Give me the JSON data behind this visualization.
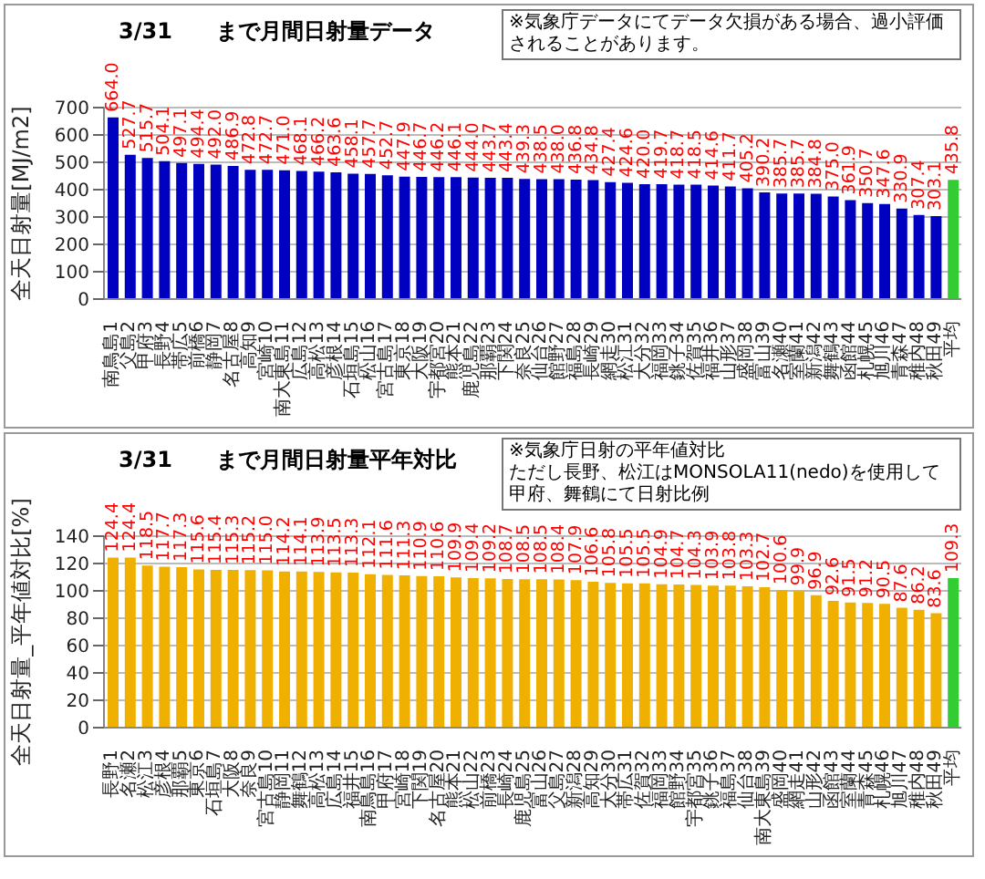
{
  "chart_data": [
    {
      "type": "bar",
      "title": "3/31　　まで月間日射量データ",
      "ylabel": "全天日射量[MJ/m2]",
      "categories": [
        "南鳥島1",
        "父島2",
        "甲府3",
        "長野4",
        "帯広5",
        "前橋6",
        "静岡7",
        "名古屋8",
        "高知9",
        "宮崎10",
        "南大東島11",
        "広島12",
        "高松13",
        "彦根14",
        "石垣島15",
        "松山16",
        "宮古島17",
        "東京18",
        "大阪19",
        "宇都宮20",
        "熊本21",
        "鹿児島22",
        "那覇23",
        "下関24",
        "奈良25",
        "仙台26",
        "館野27",
        "福島28",
        "長崎29",
        "網走30",
        "松江31",
        "大分32",
        "福岡33",
        "銚子34",
        "佐賀35",
        "福井36",
        "山形37",
        "盛岡38",
        "富山39",
        "名瀬40",
        "室蘭41",
        "新潟42",
        "舞鶴43",
        "函館44",
        "札幌45",
        "旭川46",
        "青森47",
        "稚内48",
        "秋田49",
        "平均"
      ],
      "values": [
        664.0,
        527.7,
        515.7,
        504.1,
        497.1,
        494.4,
        492.0,
        486.9,
        472.8,
        472.7,
        471.0,
        468.1,
        466.2,
        463.6,
        458.1,
        457.7,
        452.7,
        447.9,
        446.7,
        446.2,
        446.1,
        444.0,
        443.7,
        443.4,
        439.3,
        438.5,
        438.0,
        436.8,
        434.8,
        427.4,
        424.6,
        420.0,
        419.7,
        418.7,
        418.5,
        414.6,
        411.7,
        405.2,
        390.2,
        385.7,
        385.7,
        384.8,
        375.0,
        361.9,
        350.7,
        347.6,
        330.9,
        307.4,
        303.1,
        435.8
      ],
      "colors": [
        "#0000c0",
        "#0000c0",
        "#0000c0",
        "#0000c0",
        "#0000c0",
        "#0000c0",
        "#0000c0",
        "#0000c0",
        "#0000c0",
        "#0000c0",
        "#0000c0",
        "#0000c0",
        "#0000c0",
        "#0000c0",
        "#0000c0",
        "#0000c0",
        "#0000c0",
        "#0000c0",
        "#0000c0",
        "#0000c0",
        "#0000c0",
        "#0000c0",
        "#0000c0",
        "#0000c0",
        "#0000c0",
        "#0000c0",
        "#0000c0",
        "#0000c0",
        "#0000c0",
        "#0000c0",
        "#0000c0",
        "#0000c0",
        "#0000c0",
        "#0000c0",
        "#0000c0",
        "#0000c0",
        "#0000c0",
        "#0000c0",
        "#0000c0",
        "#0000c0",
        "#0000c0",
        "#0000c0",
        "#0000c0",
        "#0000c0",
        "#0000c0",
        "#0000c0",
        "#0000c0",
        "#0000c0",
        "#0000c0",
        "#33cc33"
      ],
      "value_labels": [
        "664.0",
        "527.7",
        "515.7",
        "504.1",
        "497.1",
        "494.4",
        "492.0",
        "486.9",
        "472.8",
        "472.7",
        "471.0",
        "468.1",
        "466.2",
        "463.6",
        "458.1",
        "457.7",
        "452.7",
        "447.9",
        "446.7",
        "446.2",
        "446.1",
        "444.0",
        "443.7",
        "443.4",
        "439.3",
        "438.5",
        "438.0",
        "436.8",
        "434.8",
        "427.4",
        "424.6",
        "420.0",
        "419.7",
        "418.7",
        "418.5",
        "414.6",
        "411.7",
        "405.2",
        "390.2",
        "385.7",
        "385.7",
        "384.8",
        "375.0",
        "361.9",
        "350.7",
        "347.6",
        "330.9",
        "307.4",
        "303.1",
        "435.8"
      ],
      "ylim": [
        0,
        700
      ],
      "yticks": [
        0,
        100,
        200,
        300,
        400,
        500,
        600,
        700
      ],
      "grid": "y",
      "annotations": [
        "※気象庁データにてデータ欠損がある場合、過小評価されることがあります。"
      ]
    },
    {
      "type": "bar",
      "title": "3/31　　まで月間日射量平年対比",
      "ylabel": "全天日射量_平年値対比[%]",
      "categories": [
        "長野1",
        "名瀬2",
        "松江3",
        "彦根4",
        "那覇5",
        "東京6",
        "石垣島7",
        "大阪8",
        "奈良9",
        "宮古島10",
        "静岡11",
        "舞鶴12",
        "高松13",
        "広島14",
        "福井15",
        "南鳥島16",
        "甲府17",
        "宮崎18",
        "下関19",
        "名古屋20",
        "熊本21",
        "松山22",
        "前橋23",
        "長崎24",
        "鹿児島25",
        "富山26",
        "父島27",
        "新潟28",
        "高知29",
        "大分30",
        "帯広31",
        "佐賀32",
        "福岡33",
        "館野34",
        "宇都宮35",
        "銚子36",
        "福島37",
        "仙台38",
        "南大東島39",
        "盛岡40",
        "網走41",
        "山形42",
        "函館43",
        "室蘭44",
        "青森45",
        "札幌46",
        "旭川47",
        "稚内48",
        "秋田49",
        "平均"
      ],
      "values": [
        124.4,
        124.4,
        118.5,
        117.7,
        117.3,
        115.6,
        115.4,
        115.3,
        115.2,
        115.0,
        114.2,
        114.1,
        113.9,
        113.5,
        113.3,
        112.1,
        111.6,
        111.3,
        110.9,
        110.6,
        109.9,
        109.4,
        109.2,
        108.7,
        108.5,
        108.5,
        108.4,
        107.9,
        106.6,
        105.8,
        105.5,
        105.5,
        104.9,
        104.7,
        104.3,
        103.9,
        103.8,
        103.3,
        102.7,
        100.6,
        99.9,
        96.9,
        92.6,
        91.5,
        91.2,
        90.5,
        87.6,
        86.2,
        83.6,
        109.3
      ],
      "colors": [
        "#f0b000",
        "#f0b000",
        "#f0b000",
        "#f0b000",
        "#f0b000",
        "#f0b000",
        "#f0b000",
        "#f0b000",
        "#f0b000",
        "#f0b000",
        "#f0b000",
        "#f0b000",
        "#f0b000",
        "#f0b000",
        "#f0b000",
        "#f0b000",
        "#f0b000",
        "#f0b000",
        "#f0b000",
        "#f0b000",
        "#f0b000",
        "#f0b000",
        "#f0b000",
        "#f0b000",
        "#f0b000",
        "#f0b000",
        "#f0b000",
        "#f0b000",
        "#f0b000",
        "#f0b000",
        "#f0b000",
        "#f0b000",
        "#f0b000",
        "#f0b000",
        "#f0b000",
        "#f0b000",
        "#f0b000",
        "#f0b000",
        "#f0b000",
        "#f0b000",
        "#f0b000",
        "#f0b000",
        "#f0b000",
        "#f0b000",
        "#f0b000",
        "#f0b000",
        "#f0b000",
        "#f0b000",
        "#f0b000",
        "#33cc33"
      ],
      "value_labels": [
        "124.4",
        "124.4",
        "118.5",
        "117.7",
        "117.3",
        "115.6",
        "115.4",
        "115.3",
        "115.2",
        "115.0",
        "114.2",
        "114.1",
        "113.9",
        "113.5",
        "113.3",
        "112.1",
        "111.6",
        "111.3",
        "110.9",
        "110.6",
        "109.9",
        "109.4",
        "109.2",
        "108.7",
        "108.5",
        "108.5",
        "108.4",
        "107.9",
        "106.6",
        "105.8",
        "105.5",
        "105.5",
        "104.9",
        "104.7",
        "104.3",
        "103.9",
        "103.8",
        "103.3",
        "102.7",
        "100.6",
        "99.9",
        "96.9",
        "92.6",
        "91.5",
        "91.2",
        "90.5",
        "87.6",
        "86.2",
        "83.6",
        "109.3"
      ],
      "ylim": [
        0,
        140
      ],
      "yticks": [
        0,
        20,
        40,
        60,
        80,
        100,
        120,
        140
      ],
      "grid": "y",
      "annotations": [
        "※気象庁日射の平年値対比",
        "ただし長野、松江はMONSOLA11(nedo)を使用して甲府、舞鶴にて日射比例"
      ]
    }
  ]
}
